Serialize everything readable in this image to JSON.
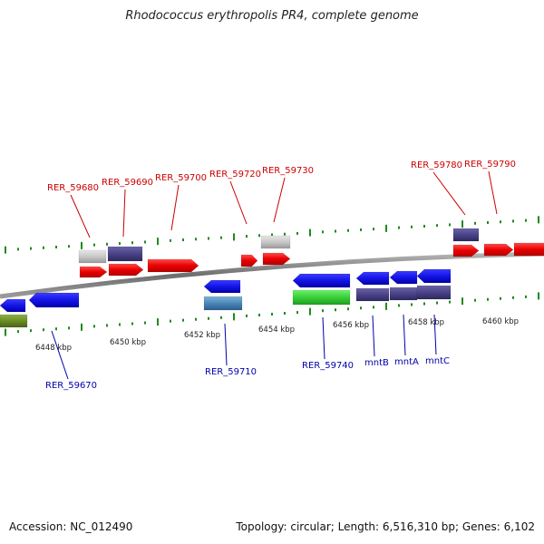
{
  "title": "Rhodococcus erythropolis PR4, complete genome",
  "footer": {
    "accession": "Accession: NC_012490",
    "summary": "Topology: circular; Length: 6,516,310 bp; Genes: 6,102"
  },
  "colors": {
    "forward_label": "#cc0000",
    "reverse_label": "#0000aa",
    "tick": "#1f8a1f",
    "backbone": "#8a8a8a"
  },
  "scale_labels": [
    "6448 kbp",
    "6450 kbp",
    "6452 kbp",
    "6454 kbp",
    "6456 kbp",
    "6458 kbp",
    "6460 kbp"
  ],
  "forward_gene_labels": [
    "RER_59680",
    "RER_59690",
    "RER_59700",
    "RER_59720",
    "RER_59730",
    "RER_59780",
    "RER_59790"
  ],
  "reverse_gene_labels": [
    "RER_59670",
    "RER_59710",
    "RER_59740",
    "mntB",
    "mntA",
    "mntC"
  ]
}
